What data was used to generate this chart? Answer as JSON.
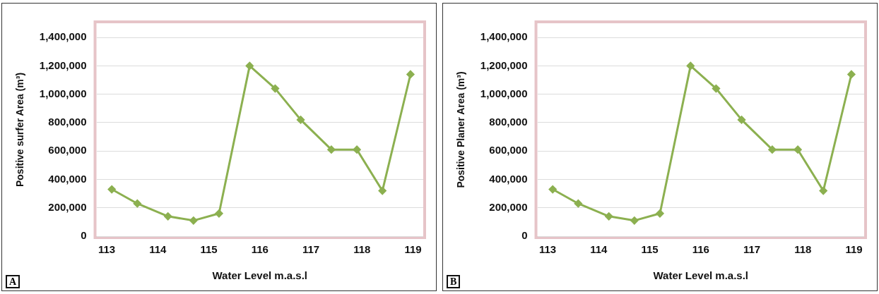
{
  "chart_data": [
    {
      "type": "line",
      "xlabel": "Water Level m.a.s.l",
      "ylabel": "Positive surfer Area (m³)",
      "annotations": [
        "A"
      ],
      "x": [
        113.1,
        113.6,
        114.2,
        114.7,
        115.2,
        115.8,
        116.3,
        116.8,
        117.4,
        117.9,
        118.4,
        118.95
      ],
      "series": [
        {
          "color": "#8cb050",
          "values": [
            330000,
            230000,
            140000,
            110000,
            160000,
            1200000,
            1040000,
            820000,
            610000,
            610000,
            320000,
            1140000
          ]
        }
      ],
      "xlim": [
        112.8,
        119.2
      ],
      "xticks": [
        113,
        114,
        115,
        116,
        117,
        118,
        119
      ],
      "ylim": [
        0,
        1500000
      ],
      "yticks": [
        0,
        {
          "value": 200000,
          "label": "200,000"
        },
        {
          "value": 400000,
          "label": "400,000"
        },
        {
          "value": 600000,
          "label": "600,000"
        },
        {
          "value": 800000,
          "label": "800,000"
        },
        {
          "value": 1000000,
          "label": "1,000,000"
        },
        {
          "value": 1200000,
          "label": "1,200,000"
        },
        {
          "value": 1400000,
          "label": "1,400,000"
        }
      ],
      "grid": "y",
      "legend": false,
      "marker": "diamond",
      "line_style": "solid"
    },
    {
      "type": "line",
      "xlabel": "Water Level m.a.s.l",
      "ylabel": "Positive Planer Area (m³)",
      "annotations": [
        "B"
      ],
      "x": [
        113.1,
        113.6,
        114.2,
        114.7,
        115.2,
        115.8,
        116.3,
        116.8,
        117.4,
        117.9,
        118.4,
        118.95
      ],
      "series": [
        {
          "color": "#8cb050",
          "values": [
            330000,
            230000,
            140000,
            110000,
            160000,
            1200000,
            1040000,
            820000,
            610000,
            610000,
            320000,
            1140000
          ]
        }
      ],
      "xlim": [
        112.8,
        119.2
      ],
      "xticks": [
        113,
        114,
        115,
        116,
        117,
        118,
        119
      ],
      "ylim": [
        0,
        1500000
      ],
      "yticks": [
        0,
        {
          "value": 200000,
          "label": "200,000"
        },
        {
          "value": 400000,
          "label": "400,000"
        },
        {
          "value": 600000,
          "label": "600,000"
        },
        {
          "value": 800000,
          "label": "800,000"
        },
        {
          "value": 1000000,
          "label": "1,000,000"
        },
        {
          "value": 1200000,
          "label": "1,200,000"
        },
        {
          "value": 1400000,
          "label": "1,400,000"
        }
      ],
      "grid": "y",
      "legend": false,
      "marker": "diamond",
      "line_style": "solid"
    }
  ]
}
